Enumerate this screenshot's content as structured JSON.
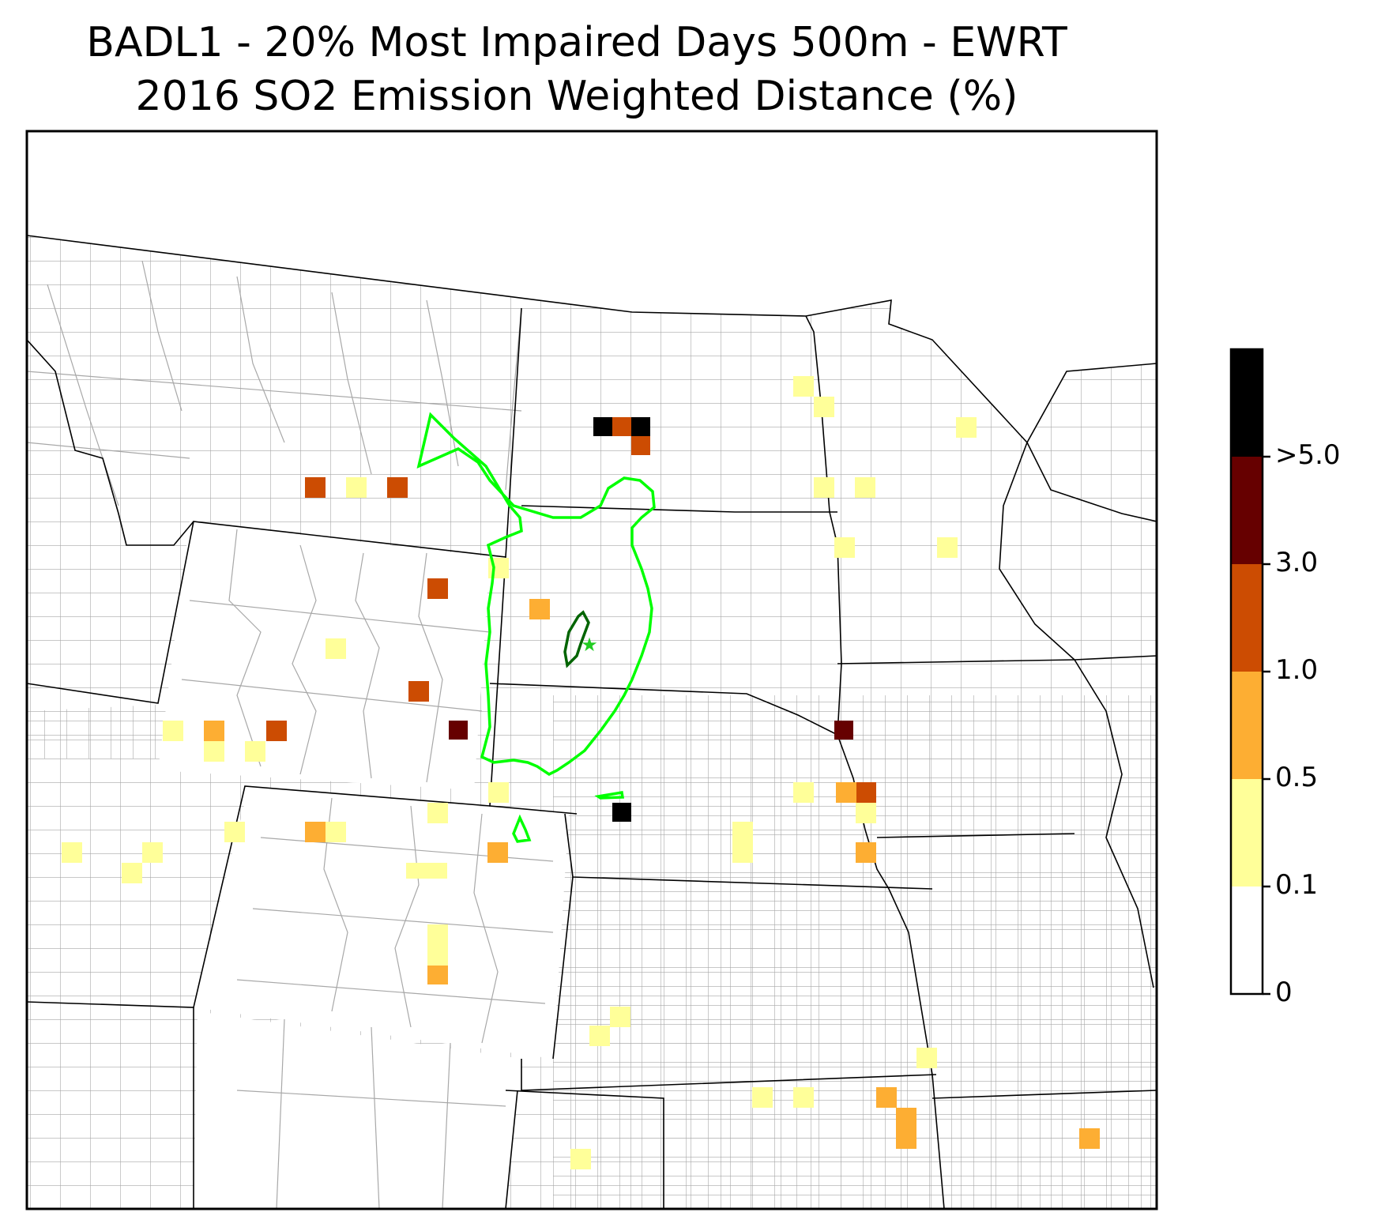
{
  "title": {
    "line1": "BADL1 - 20% Most Impaired Days 500m - EWRT",
    "line2": "2016 SO2 Emission Weighted Distance (%)"
  },
  "legend": {
    "type": "colorbar",
    "bins": [
      {
        "label": "0",
        "color": "#ffffff"
      },
      {
        "label": "0.1",
        "color": "#ffff99"
      },
      {
        "label": "0.5",
        "color": "#fdae33"
      },
      {
        "label": "1.0",
        "color": "#cc4c02"
      },
      {
        "label": "3.0",
        "color": "#660000"
      },
      {
        "label": ">5.0",
        "color": "#000000"
      }
    ]
  },
  "colors": {
    "state_border": "#000000",
    "county_border": "#a8a8a8",
    "contour_outer": "#00ff00",
    "contour_inner": "#006400",
    "site_marker": "#22cc22"
  },
  "site_marker": {
    "icon": "star-icon"
  }
}
